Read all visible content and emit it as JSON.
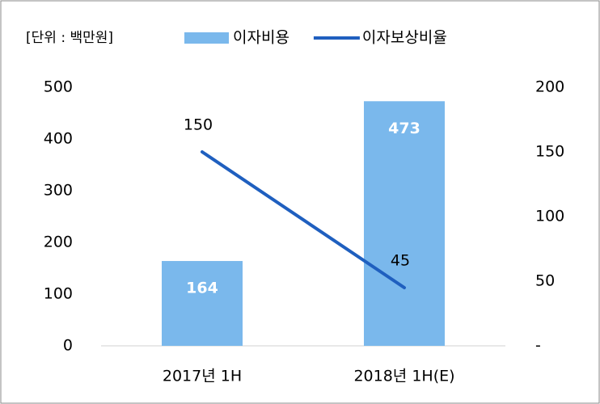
{
  "chart_data": {
    "type": "bar_line",
    "annotation": "[단위 : 백만원]",
    "categories": [
      "2017년 1H",
      "2018년 1H(E)"
    ],
    "series": [
      {
        "name": "이자비용",
        "type": "bar",
        "color": "#7ab8ec",
        "values": [
          164,
          473
        ]
      },
      {
        "name": "이자보상비율",
        "type": "line",
        "axis": "y2",
        "color": "#1f5fbf",
        "values": [
          150,
          45
        ]
      }
    ],
    "ylim": [
      0,
      500
    ],
    "yticks": [
      0,
      100,
      200,
      300,
      400,
      500
    ],
    "y2lim": [
      0,
      200
    ],
    "y2ticks": [
      {
        "value": 0,
        "label": "-"
      },
      50,
      100,
      150,
      200
    ],
    "grid": false,
    "legend": "top"
  }
}
